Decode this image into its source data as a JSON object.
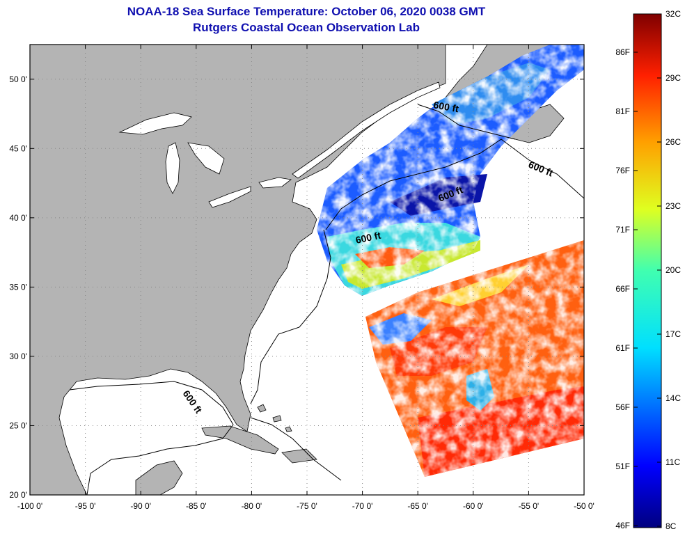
{
  "title": "NOAA-18 Sea Surface Temperature:  October 06, 2020 0038 GMT",
  "subtitle": "Rutgers Coastal Ocean Observation Lab",
  "map": {
    "lon_range": [
      -100,
      -50
    ],
    "lat_range": [
      20,
      52.5
    ],
    "lon_ticks": [
      {
        "value": -100,
        "label": "-100 0'"
      },
      {
        "value": -95,
        "label": "-95 0'"
      },
      {
        "value": -90,
        "label": "-90 0'"
      },
      {
        "value": -85,
        "label": "-85 0'"
      },
      {
        "value": -80,
        "label": "-80 0'"
      },
      {
        "value": -75,
        "label": "-75 0'"
      },
      {
        "value": -70,
        "label": "-70 0'"
      },
      {
        "value": -65,
        "label": "-65 0'"
      },
      {
        "value": -60,
        "label": "-60 0'"
      },
      {
        "value": -55,
        "label": "-55 0'"
      },
      {
        "value": -50,
        "label": "-50 0'"
      }
    ],
    "lat_ticks": [
      {
        "value": 20,
        "label": "20 0'"
      },
      {
        "value": 25,
        "label": "25 0'"
      },
      {
        "value": 30,
        "label": "30 0'"
      },
      {
        "value": 35,
        "label": "35 0'"
      },
      {
        "value": 40,
        "label": "40 0'"
      },
      {
        "value": 45,
        "label": "45 0'"
      },
      {
        "value": 50,
        "label": "50 0'"
      }
    ],
    "isobath_labels": [
      "600 ft",
      "600 ft",
      "600 ft",
      "600 ft",
      "600 ft"
    ],
    "colors": {
      "land": "#b4b4b4",
      "no_data": "#ffffff",
      "grid": "#888888"
    }
  },
  "colorbar": {
    "fahrenheit": [
      "86F",
      "81F",
      "76F",
      "71F",
      "66F",
      "61F",
      "56F",
      "51F",
      "46F"
    ],
    "celsius": [
      "32C",
      "29C",
      "26C",
      "23C",
      "20C",
      "17C",
      "14C",
      "11C",
      "8C"
    ]
  }
}
